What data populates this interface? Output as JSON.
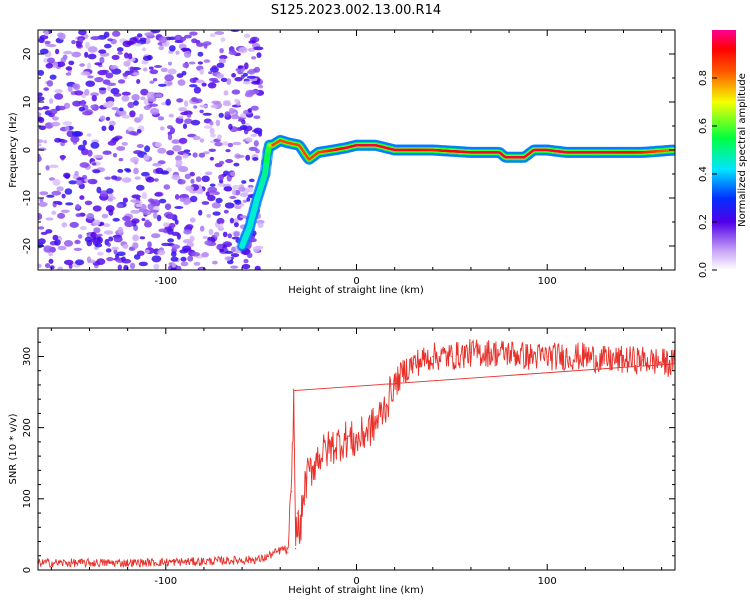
{
  "title": "S125.2023.002.13.00.R14",
  "chart_data": [
    {
      "type": "heatmap",
      "xlabel": "Height of straight line (km)",
      "ylabel": "Frequency (Hz)",
      "xlim": [
        -167,
        167
      ],
      "ylim": [
        -25,
        25
      ],
      "xticks": [
        -100,
        0,
        100
      ],
      "yticks": [
        20,
        10,
        0,
        -10,
        -20
      ],
      "colorbar": {
        "label": "Normalized spectral amplitude",
        "ticks": [
          "0.0",
          "0.2",
          "0.4",
          "0.6",
          "0.8"
        ],
        "range": [
          0,
          1
        ]
      },
      "ridge": {
        "x": [
          -60,
          -56,
          -52,
          -48,
          -46,
          -44,
          -40,
          -36,
          -30,
          -25,
          -20,
          -12,
          -5,
          0,
          10,
          20,
          40,
          60,
          75,
          78,
          83,
          88,
          93,
          100,
          110,
          130,
          150,
          167
        ],
        "y": [
          -20,
          -16,
          -10,
          -5,
          1,
          1,
          2,
          1.5,
          1,
          -2,
          -0.5,
          0,
          0.5,
          1,
          1,
          0,
          0,
          -0.5,
          -0.5,
          -1.5,
          -1.5,
          -1.5,
          0,
          0,
          -0.5,
          -0.5,
          -0.5,
          0
        ],
        "amp": [
          0.45,
          0.45,
          0.45,
          0.5,
          0.6,
          0.85,
          0.85,
          0.85,
          0.85,
          0.85,
          0.85,
          0.9,
          0.95,
          0.95,
          0.95,
          0.95,
          0.9,
          0.95,
          0.95,
          0.95,
          0.95,
          0.95,
          0.95,
          0.95,
          0.95,
          0.95,
          0.9,
          0.8
        ]
      },
      "noise_region_x": [
        -167,
        -55
      ],
      "noise_amplitude": [
        0.05,
        0.25
      ]
    },
    {
      "type": "line",
      "xlabel": "Height of straight line (km)",
      "ylabel": "SNR (10 * v/v)",
      "xlim": [
        -167,
        167
      ],
      "ylim": [
        0,
        340
      ],
      "xticks": [
        -100,
        0,
        100
      ],
      "yticks": [
        0,
        100,
        200,
        300
      ],
      "series": [
        {
          "color": "#e8302a",
          "x": [
            -167,
            -120,
            -80,
            -50,
            -42,
            -38,
            -36,
            -34,
            -33,
            -32.5,
            -32,
            -31,
            -30,
            -28,
            -26,
            -20,
            -12,
            -5,
            0,
            5,
            10,
            15,
            20,
            25,
            30,
            40,
            50,
            60,
            70,
            80,
            90,
            100,
            110,
            120,
            130,
            140,
            150,
            167
          ],
          "y": [
            10,
            10,
            12,
            15,
            25,
            30,
            25,
            110,
            250,
            170,
            30,
            80,
            40,
            100,
            130,
            160,
            175,
            185,
            180,
            195,
            205,
            230,
            260,
            280,
            290,
            300,
            300,
            305,
            305,
            305,
            300,
            300,
            300,
            300,
            295,
            295,
            295,
            290
          ]
        }
      ]
    }
  ]
}
